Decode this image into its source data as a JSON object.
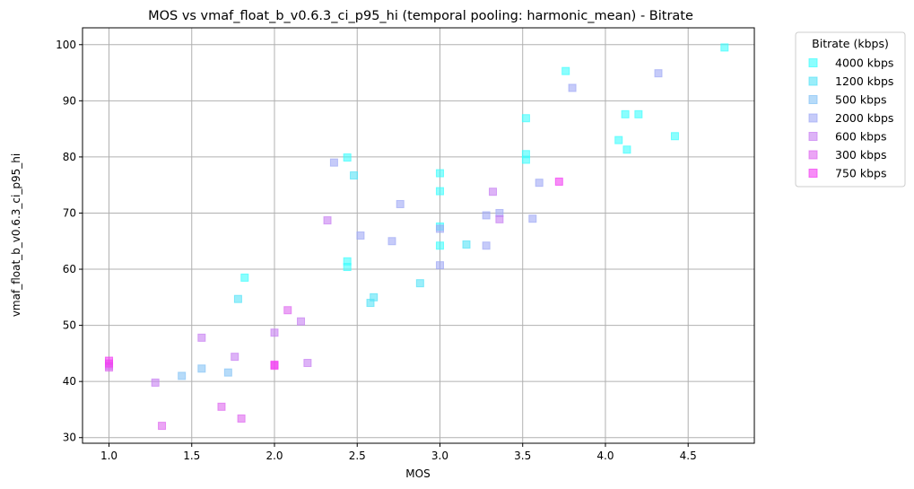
{
  "chart_data": {
    "type": "scatter",
    "title": "MOS vs vmaf_float_b_v0.6.3_ci_p95_hi (temporal pooling: harmonic_mean) - Bitrate",
    "xlabel": "MOS",
    "ylabel": "vmaf_float_b_v0.6.3_ci_p95_hi",
    "xlim": [
      0.84,
      4.9
    ],
    "ylim": [
      29.0,
      103.0
    ],
    "xticks": [
      "1.0",
      "1.5",
      "2.0",
      "2.5",
      "3.0",
      "3.5",
      "4.0",
      "4.5"
    ],
    "yticks": [
      "30",
      "40",
      "50",
      "60",
      "70",
      "80",
      "90",
      "100"
    ],
    "grid": true,
    "marker": "square",
    "legend_position": "outside-top-right",
    "legend_title": "Bitrate (kbps)",
    "series": [
      {
        "name": "4000 kbps",
        "color": "#3dfefe",
        "points": [
          [
            4.72,
            99.5
          ],
          [
            3.76,
            95.3
          ],
          [
            4.12,
            87.6
          ],
          [
            4.2,
            87.6
          ],
          [
            3.52,
            86.9
          ],
          [
            4.08,
            83.0
          ],
          [
            4.42,
            83.7
          ],
          [
            4.13,
            81.3
          ],
          [
            3.52,
            80.5
          ],
          [
            3.52,
            79.5
          ],
          [
            2.44,
            79.9
          ],
          [
            3.0,
            77.1
          ],
          [
            3.0,
            73.9
          ],
          [
            3.0,
            67.6
          ],
          [
            3.0,
            64.2
          ],
          [
            2.44,
            61.4
          ],
          [
            2.44,
            60.4
          ],
          [
            1.82,
            58.5
          ]
        ]
      },
      {
        "name": "1200 kbps",
        "color": "#56e2f7",
        "points": [
          [
            2.48,
            76.7
          ],
          [
            3.16,
            64.4
          ],
          [
            2.6,
            55.0
          ],
          [
            2.58,
            54.0
          ],
          [
            2.88,
            57.5
          ],
          [
            1.78,
            54.7
          ]
        ]
      },
      {
        "name": "500 kbps",
        "color": "#86c3f5",
        "points": [
          [
            1.56,
            42.3
          ],
          [
            1.72,
            41.6
          ],
          [
            1.44,
            41.0
          ]
        ]
      },
      {
        "name": "2000 kbps",
        "color": "#a0a9f5",
        "points": [
          [
            4.32,
            94.9
          ],
          [
            3.8,
            92.3
          ],
          [
            2.36,
            79.0
          ],
          [
            3.6,
            75.4
          ],
          [
            2.76,
            71.6
          ],
          [
            3.28,
            69.6
          ],
          [
            3.36,
            70.0
          ],
          [
            3.56,
            69.0
          ],
          [
            3.0,
            67.2
          ],
          [
            2.52,
            66.0
          ],
          [
            2.71,
            65.0
          ],
          [
            3.28,
            64.2
          ],
          [
            3.0,
            60.7
          ]
        ]
      },
      {
        "name": "600 kbps",
        "color": "#c780f2",
        "points": [
          [
            3.32,
            73.8
          ],
          [
            3.36,
            68.9
          ],
          [
            2.32,
            68.7
          ],
          [
            2.16,
            50.7
          ],
          [
            2.0,
            48.7
          ],
          [
            1.56,
            47.8
          ],
          [
            1.76,
            44.4
          ],
          [
            2.2,
            43.3
          ],
          [
            1.28,
            39.8
          ],
          [
            1.0,
            42.8
          ]
        ]
      },
      {
        "name": "300 kbps",
        "color": "#de69ef",
        "points": [
          [
            2.08,
            52.7
          ],
          [
            1.68,
            35.5
          ],
          [
            1.8,
            33.4
          ],
          [
            1.32,
            32.1
          ],
          [
            1.0,
            42.5
          ]
        ]
      },
      {
        "name": "750 kbps",
        "color": "#f23ff2",
        "points": [
          [
            3.72,
            75.6
          ],
          [
            2.0,
            43.0
          ],
          [
            2.0,
            42.8
          ],
          [
            1.0,
            43.7
          ],
          [
            1.0,
            43.2
          ]
        ]
      }
    ]
  }
}
